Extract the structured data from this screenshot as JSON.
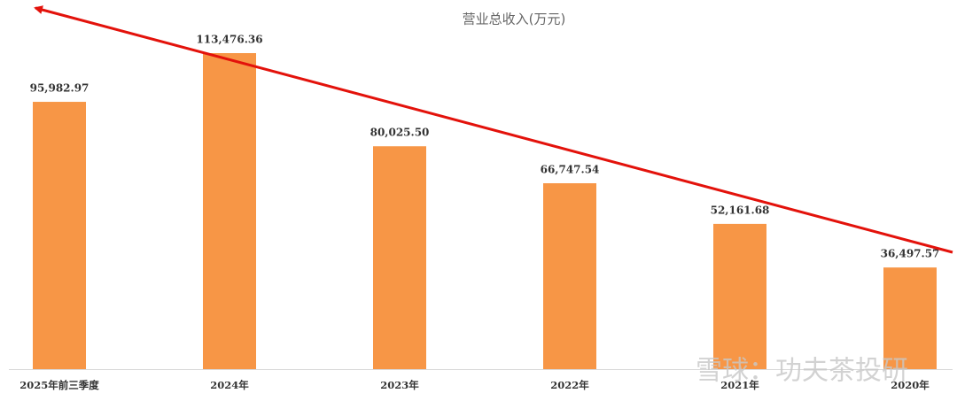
{
  "chart_data": {
    "type": "bar",
    "title": "营业总收入(万元)",
    "categories": [
      "2025年前三季度",
      "2024年",
      "2023年",
      "2022年",
      "2021年",
      "2020年"
    ],
    "values": [
      95982.97,
      113476.36,
      80025.5,
      66747.54,
      52161.68,
      36497.57
    ],
    "value_labels": [
      "95,982.97",
      "113,476.36",
      "80,025.50",
      "66,747.54",
      "52,161.68",
      "36,497.57"
    ],
    "color": "#f79646"
  },
  "watermark": "雪球：功夫茶投研"
}
